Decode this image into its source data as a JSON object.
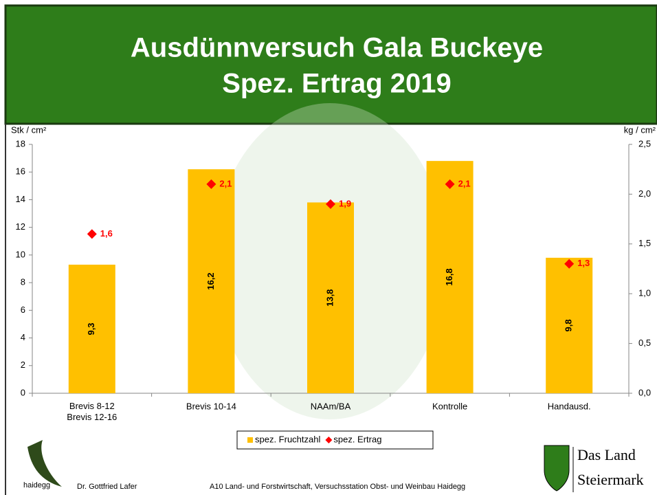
{
  "chart_data": {
    "type": "bar",
    "title": "Ausdünnversuch Gala Buckeye",
    "subtitle": "Spez. Ertrag 2019",
    "y_label": "Stk / cm²",
    "y2_label": "kg / cm²",
    "categories": [
      "Brevis 8-12\nBrevis 12-16",
      "Brevis 10-14",
      "NAAm/BA",
      "Kontrolle",
      "Handausd."
    ],
    "series": [
      {
        "name": "spez. Fruchtzahl",
        "color": "#ffc000",
        "values": [
          9.3,
          16.2,
          13.8,
          16.8,
          9.8
        ],
        "value_labels": [
          "9,3",
          "16,2",
          "13,8",
          "16,8",
          "9,8"
        ]
      },
      {
        "name": "spez. Ertrag",
        "color": "#ff0000",
        "axis": "y2",
        "values": [
          1.6,
          2.1,
          1.9,
          2.1,
          1.3
        ],
        "value_labels": [
          "1,6",
          "2,1",
          "1,9",
          "2,1",
          "1,3"
        ]
      }
    ],
    "ylim": [
      0,
      18
    ],
    "yticks": [
      0,
      2,
      4,
      6,
      8,
      10,
      12,
      14,
      16,
      18
    ],
    "y2lim": [
      0,
      2.5
    ],
    "y2ticks": [
      {
        "value": 0,
        "label": "0,0"
      },
      {
        "value": 0.5,
        "label": "0,5"
      },
      {
        "value": 1,
        "label": "1,0"
      },
      {
        "value": 1.5,
        "label": "1,5"
      },
      {
        "value": 2,
        "label": "2,0"
      },
      {
        "value": 2.5,
        "label": "2,5"
      }
    ],
    "legend": "bottom"
  },
  "footer": {
    "logo_text": "haidegg",
    "author": "Dr. Gottfried Lafer",
    "institution": "A10 Land- und Forstwirtschaft, Versuchsstation Obst- und Weinbau Haidegg",
    "brand_line1": "Das Land",
    "brand_line2": "Steiermark"
  }
}
